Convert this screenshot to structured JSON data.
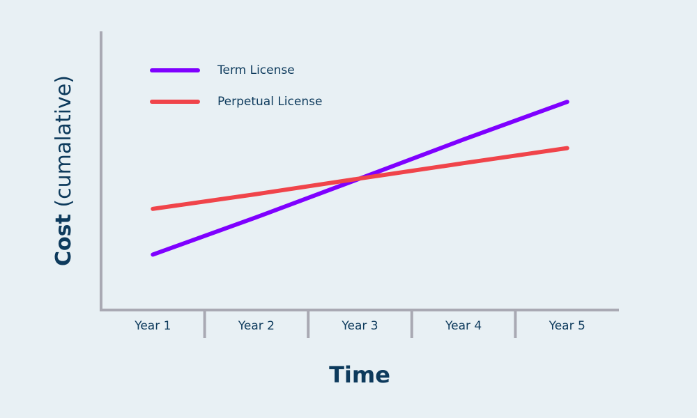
{
  "chart_data": {
    "type": "line",
    "y_label": [
      "Cost",
      "(cumalative)"
    ],
    "x_label": "Time",
    "categories": [
      "Year 1",
      "Year 2",
      "Year 3",
      "Year 4",
      "Year 5"
    ],
    "ylim": [
      0,
      100
    ],
    "legend": "top-left",
    "series": [
      {
        "name": "Term License",
        "color": "#7f00ff",
        "values": [
          19.9,
          33.3,
          47.2,
          61.2,
          74.7
        ]
      },
      {
        "name": "Perpetual License",
        "color": "#f0444a",
        "values": [
          36.3,
          41.6,
          47.2,
          52.7,
          58.1
        ]
      }
    ]
  }
}
